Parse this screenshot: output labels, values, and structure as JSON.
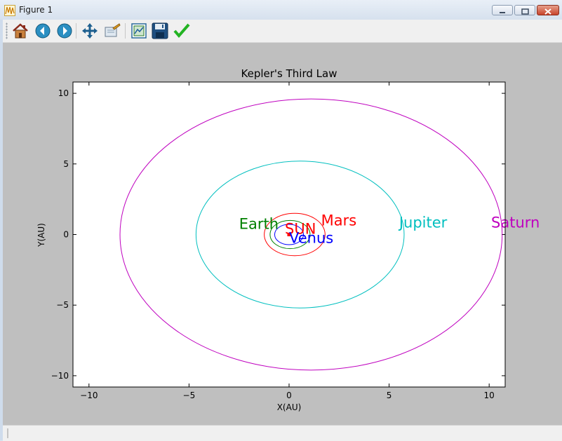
{
  "window": {
    "title": "Figure 1"
  },
  "toolbar": {
    "buttons": [
      "home-icon",
      "back-icon",
      "forward-icon",
      "pan-icon",
      "zoom-icon",
      "subplots-icon",
      "save-icon",
      "edit-check-icon"
    ]
  },
  "chart_data": {
    "type": "line",
    "title": "Kepler's Third Law",
    "xlabel": "X(AU)",
    "ylabel": "Y(AU)",
    "xlim": [
      -10.8,
      10.8
    ],
    "ylim": [
      -10.8,
      10.8
    ],
    "xticks": [
      -10,
      -5,
      0,
      5,
      10
    ],
    "yticks": [
      -10,
      -5,
      0,
      5,
      10
    ],
    "xtick_labels": [
      "−10",
      "−5",
      "0",
      "5",
      "10"
    ],
    "ytick_labels": [
      "−10",
      "−5",
      "0",
      "5",
      "10"
    ],
    "grid": false,
    "sun": {
      "label": "SUN",
      "x": 0,
      "y": 0,
      "color": "#ff0000"
    },
    "series": [
      {
        "name": "Venus",
        "a": 0.72,
        "b": 0.72,
        "cx": 0.0,
        "color": "#0000ff",
        "label_x": 0.0,
        "label_y": -0.6
      },
      {
        "name": "Earth",
        "a": 1.0,
        "b": 1.0,
        "cx": 0.05,
        "color": "#008000",
        "label_x": -2.5,
        "label_y": 0.4
      },
      {
        "name": "Mars",
        "a": 1.52,
        "b": 1.5,
        "cx": 0.28,
        "color": "#ff0000",
        "label_x": 1.6,
        "label_y": 0.65
      },
      {
        "name": "Jupiter",
        "a": 5.2,
        "b": 5.2,
        "cx": 0.55,
        "color": "#00bfbf",
        "label_x": 5.5,
        "label_y": 0.5
      },
      {
        "name": "Saturn",
        "a": 9.55,
        "b": 9.6,
        "cx": 1.1,
        "color": "#bf00bf",
        "label_x": 10.1,
        "label_y": 0.5
      }
    ]
  }
}
